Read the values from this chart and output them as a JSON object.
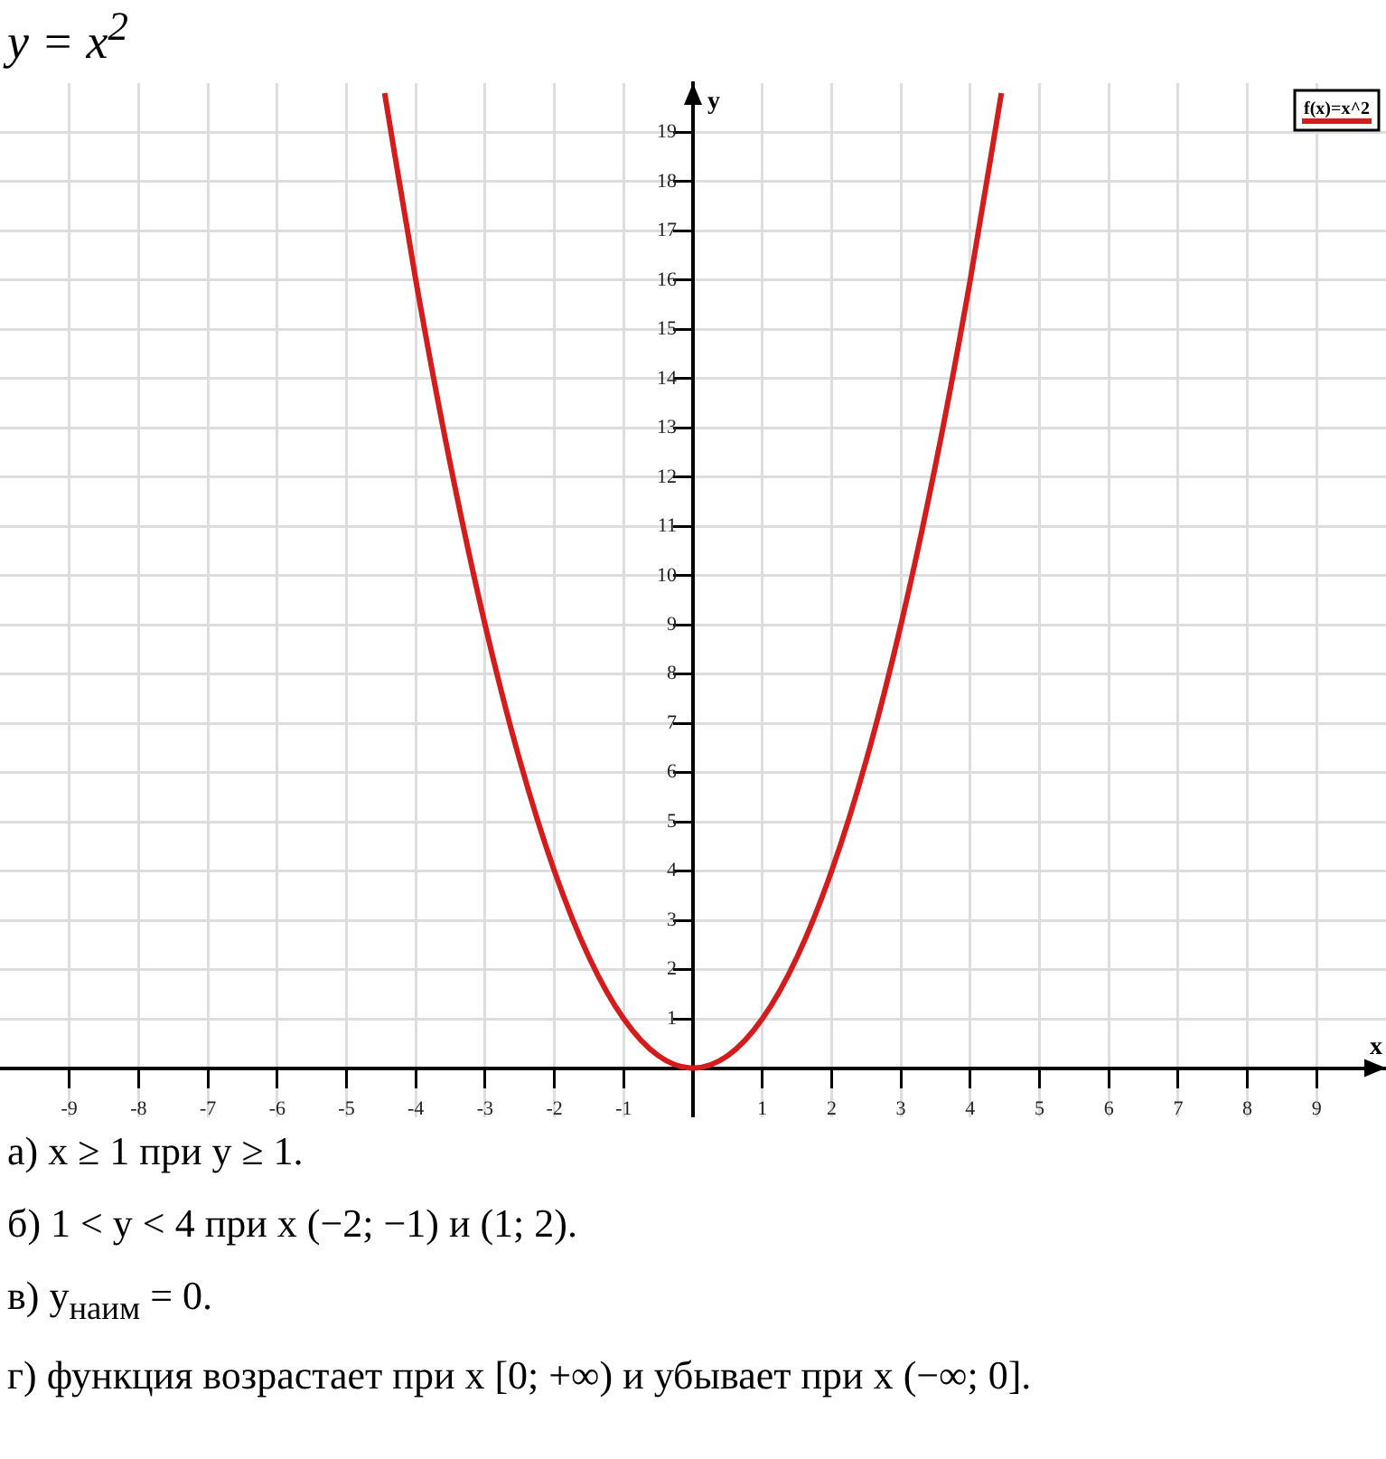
{
  "chart_data": {
    "type": "line",
    "title": "y = x$^{2}$",
    "xlabel": "x",
    "ylabel": "y",
    "x": [
      -4.45,
      -4,
      -3.5,
      -3,
      -2.5,
      -2,
      -1.5,
      -1,
      -0.5,
      0,
      0.5,
      1,
      1.5,
      2,
      2.5,
      3,
      3.5,
      4,
      4.45
    ],
    "series": [
      {
        "name": "f(x)=x^2",
        "color": "#d41c1c",
        "values": [
          19.8,
          16,
          12.25,
          9,
          6.25,
          4,
          2.25,
          1,
          0.25,
          0,
          0.25,
          1,
          2.25,
          4,
          6.25,
          9,
          12.25,
          16,
          19.8
        ]
      }
    ],
    "xlim": [
      -10,
      10
    ],
    "ylim": [
      -1,
      20
    ],
    "xticks": [
      -9,
      -8,
      -7,
      -6,
      -5,
      -4,
      -3,
      -2,
      -1,
      {
        "value": 0,
        "label": null
      },
      1,
      2,
      3,
      4,
      5,
      6,
      7,
      8,
      9
    ],
    "yticks": [
      {
        "value": 0,
        "label": null
      },
      1,
      2,
      3,
      4,
      5,
      6,
      7,
      8,
      9,
      10,
      11,
      12,
      13,
      14,
      15,
      16,
      17,
      18,
      19
    ],
    "grid": true,
    "legend": "top right",
    "marker": "none",
    "line_style": "solid",
    "annotations": [
      "а) x ≥ 1 при y ≥ 1.",
      "б) 1 < y < 4 при x (−2; −1) и (1; 2).",
      "в) y$_{наим}$ = 0.",
      "г) функция возрастает при x [0; +∞) и убывает при x (−∞; 0]."
    ]
  }
}
